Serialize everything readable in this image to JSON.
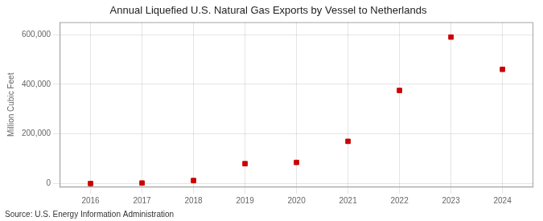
{
  "chart_data": {
    "type": "scatter",
    "title": "Annual Liquefied U.S. Natural Gas Exports by Vessel to Netherlands",
    "ylabel": "Million Cubic Feet",
    "annotations": [
      "Source: U.S. Energy Information Administration"
    ],
    "x": [
      2016,
      2017,
      2018,
      2019,
      2020,
      2021,
      2022,
      2023,
      2024
    ],
    "values": [
      0,
      2000,
      12000,
      80000,
      85000,
      170000,
      375000,
      590000,
      460000
    ],
    "color": "#cc0000",
    "marker": "square",
    "xlim": [
      2015.4,
      2024.6
    ],
    "xticks": [
      2016,
      2017,
      2018,
      2019,
      2020,
      2021,
      2022,
      2023,
      2024
    ],
    "ylim": [
      -15000,
      650000
    ],
    "yticks": [
      0,
      {
        "value": 200000,
        "label": "200,000"
      },
      {
        "value": 400000,
        "label": "400,000"
      },
      {
        "value": 600000,
        "label": "600,000"
      }
    ],
    "grid": true
  }
}
